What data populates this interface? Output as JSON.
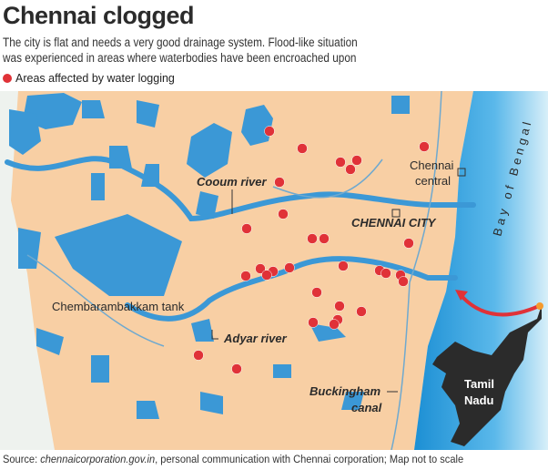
{
  "title": "Chennai clogged",
  "subtitle": "The city is flat and needs a very good drainage system. Flood-like situation was experienced in areas where waterbodies have been encroached upon",
  "legend": {
    "label": "Areas affected by water logging",
    "color": "#e03238"
  },
  "map": {
    "labels": {
      "coovum": "Cooum river",
      "chennai_city": "CHENNAI CITY",
      "chennai_central_1": "Chennai",
      "chennai_central_2": "central",
      "bay": "Bay of Bengal",
      "chembarambakkam": "Chembarambakkam tank",
      "adyar": "Adyar river",
      "buckingham_1": "Buckingham",
      "buckingham_2": "canal",
      "tamil_1": "Tamil",
      "tamil_2": "Nadu"
    },
    "colors": {
      "land": "#f8cfa4",
      "water": "#3b98d6",
      "sea": "#2ea3e0",
      "state": "#2b2b2b",
      "marker": "#e03238"
    },
    "water_logging_points_count": 30
  },
  "source": {
    "prefix": "Source: ",
    "site": "chennaicorporation.gov.in",
    "rest": ", personal communication with Chennai corporation; Map not to scale"
  }
}
